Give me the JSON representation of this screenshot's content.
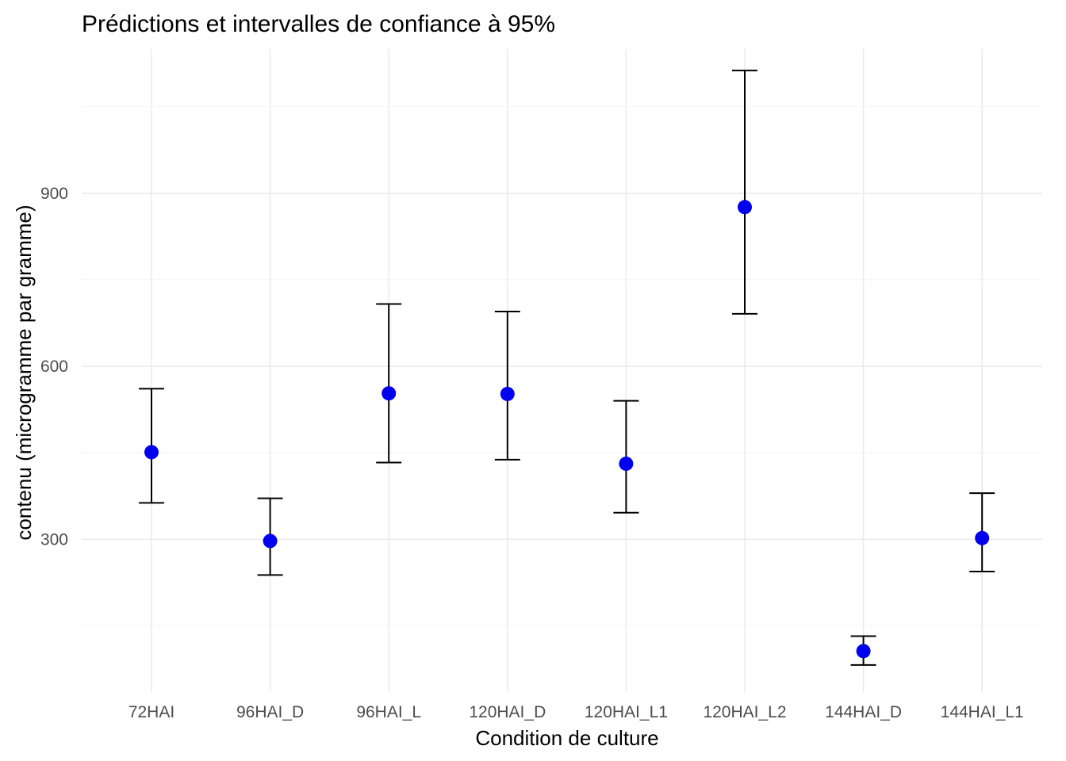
{
  "chart_data": {
    "type": "scatter",
    "title": "Prédictions et intervalles de confiance à 95%",
    "xlabel": "Condition de culture",
    "ylabel": "contenu (microgramme par gramme)",
    "categories": [
      "72HAI",
      "96HAI_D",
      "96HAI_L",
      "120HAI_D",
      "120HAI_L1",
      "120HAI_L2",
      "144HAI_D",
      "144HAI_L1"
    ],
    "values": [
      451,
      297,
      553,
      552,
      431,
      876,
      106,
      302
    ],
    "lower": [
      363,
      238,
      433,
      438,
      346,
      691,
      82,
      244
    ],
    "upper": [
      561,
      371,
      708,
      695,
      540,
      1113,
      132,
      380
    ],
    "yticks": [
      300,
      600,
      900
    ],
    "ylim": [
      35,
      1150
    ],
    "grid": true,
    "legend": "none",
    "point_color": "#0000ee",
    "errorbar_color": "#000000"
  }
}
